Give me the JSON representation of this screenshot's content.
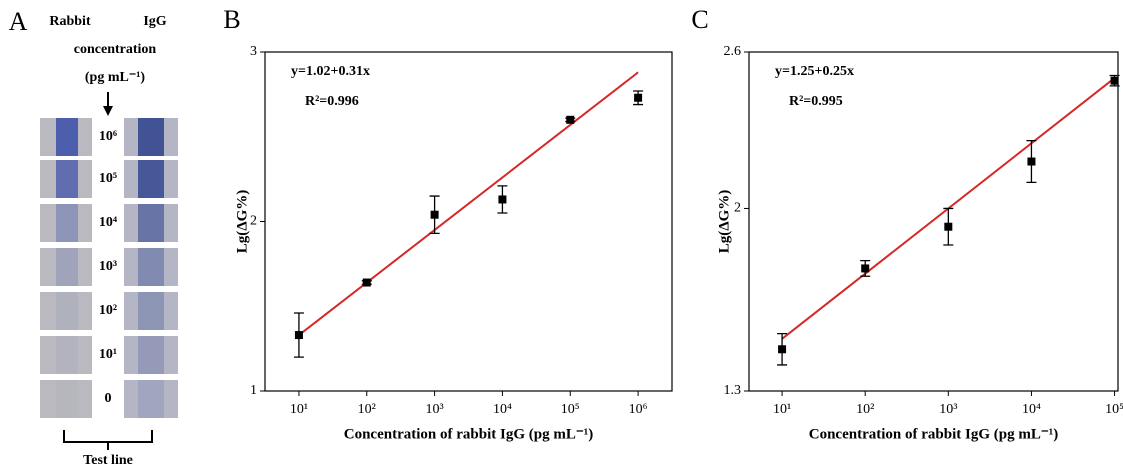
{
  "panel_a": {
    "label": "A",
    "header": [
      "Rabbit",
      "IgG",
      "concentration",
      "(pg mL⁻¹)"
    ],
    "rows": [
      "10⁶",
      "10⁵",
      "10⁴",
      "10³",
      "10²",
      "10¹",
      "0"
    ],
    "footer": "Test line"
  },
  "chart_data": [
    {
      "type": "scatter",
      "panel_label": "B",
      "xscale": "log",
      "xlabel": "Concentration of rabbit IgG (pg mL⁻¹)",
      "ylabel": "Lg(ΔG%)",
      "annotations": [
        "y=1.02+0.31x",
        "R²=0.996"
      ],
      "x": [
        10,
        100,
        1000,
        10000,
        100000,
        1000000
      ],
      "series": [
        {
          "color": "#000000",
          "values": [
            1.33,
            1.64,
            2.04,
            2.13,
            2.6,
            2.73
          ],
          "errors": [
            0.13,
            0.01,
            0.11,
            0.08,
            0.01,
            0.04
          ]
        }
      ],
      "fit": {
        "color": "#d62728",
        "x": [
          10,
          1000000
        ],
        "values": [
          1.33,
          2.88
        ]
      },
      "xlim": [
        3.16,
        3162000
      ],
      "ylim": [
        1,
        3
      ],
      "xticks": [
        {
          "value": 10,
          "label": "10¹"
        },
        {
          "value": 100,
          "label": "10²"
        },
        {
          "value": 1000,
          "label": "10³"
        },
        {
          "value": 10000,
          "label": "10⁴"
        },
        {
          "value": 100000,
          "label": "10⁵"
        },
        {
          "value": 1000000,
          "label": "10⁶"
        }
      ],
      "yticks": [
        1,
        2,
        3
      ]
    },
    {
      "type": "scatter",
      "panel_label": "C",
      "xscale": "log",
      "xlabel": "Concentration of rabbit IgG (pg mL⁻¹)",
      "ylabel": "Lg(ΔG%)",
      "annotations": [
        "y=1.25+0.25x",
        "R²=0.995"
      ],
      "x": [
        10,
        100,
        1000,
        10000,
        100000
      ],
      "series": [
        {
          "color": "#000000",
          "values": [
            1.46,
            1.77,
            1.93,
            2.18,
            2.49
          ],
          "errors": [
            0.06,
            0.03,
            0.07,
            0.08,
            0.02
          ]
        }
      ],
      "fit": {
        "color": "#d62728",
        "x": [
          10,
          100000
        ],
        "values": [
          1.5,
          2.5
        ]
      },
      "xlim": [
        4,
        110000
      ],
      "ylim": [
        1.3,
        2.6
      ],
      "xticks": [
        {
          "value": 10,
          "label": "10¹"
        },
        {
          "value": 100,
          "label": "10²"
        },
        {
          "value": 1000,
          "label": "10³"
        },
        {
          "value": 10000,
          "label": "10⁴"
        },
        {
          "value": 100000,
          "label": "10⁵"
        }
      ],
      "yticks": [
        1.3,
        2,
        2.6
      ]
    }
  ]
}
